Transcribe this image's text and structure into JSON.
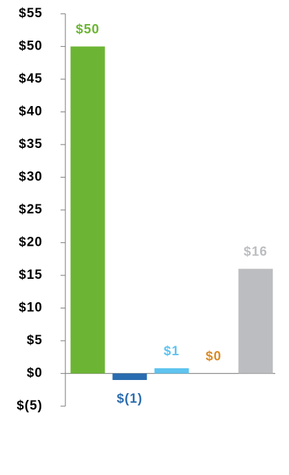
{
  "chart_data": {
    "type": "bar",
    "categories": [
      null,
      null,
      null,
      null,
      null
    ],
    "values": [
      50,
      -1,
      0.8,
      0,
      16
    ],
    "value_labels": [
      "$50",
      "$(1)",
      "$1",
      "$0",
      "$16"
    ],
    "colors": [
      "#6cb534",
      "#2a6cb0",
      "#5ec3ef",
      "#d98b26",
      "#bcbdc0"
    ],
    "ylim": [
      -5,
      55
    ],
    "yticks": [
      {
        "value": -5,
        "label": "$(5)"
      },
      {
        "value": 0,
        "label": "$0"
      },
      {
        "value": 5,
        "label": "$5"
      },
      {
        "value": 10,
        "label": "$10"
      },
      {
        "value": 15,
        "label": "$15"
      },
      {
        "value": 20,
        "label": "$20"
      },
      {
        "value": 25,
        "label": "$25"
      },
      {
        "value": 30,
        "label": "$30"
      },
      {
        "value": 35,
        "label": "$35"
      },
      {
        "value": 40,
        "label": "$40"
      },
      {
        "value": 45,
        "label": "$45"
      },
      {
        "value": 50,
        "label": "$50"
      },
      {
        "value": 55,
        "label": "$55"
      }
    ],
    "grid": false
  }
}
